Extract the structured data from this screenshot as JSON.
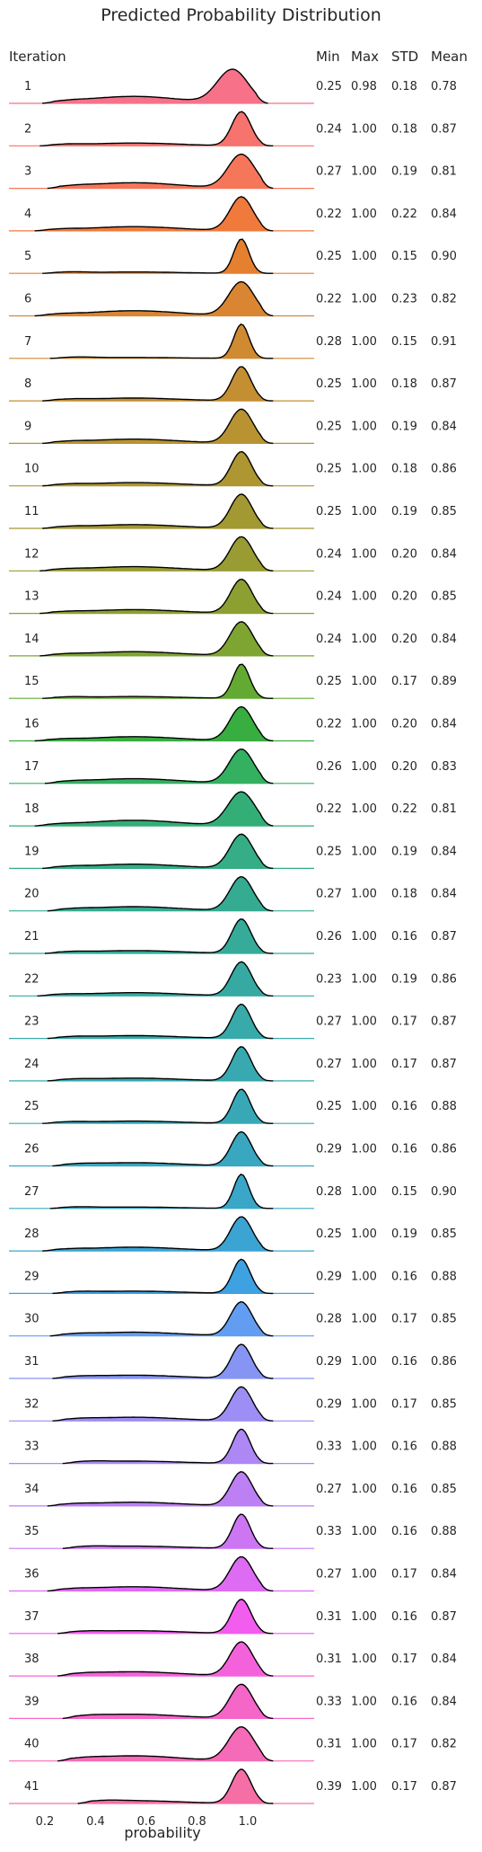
{
  "chart_data": {
    "type": "area",
    "title": "Predicted Probability Distribution",
    "xlabel": "probability",
    "xlim": [
      0.1,
      1.2
    ],
    "xticks": [
      "0.2",
      "0.4",
      "0.6",
      "0.8",
      "1.0"
    ],
    "row_header": "Iteration",
    "stat_headers": [
      "Min",
      "Max",
      "STD",
      "Mean"
    ],
    "rows": [
      {
        "iteration": "1",
        "min": "0.25",
        "max": "0.98",
        "std": "0.18",
        "mean": "0.78",
        "color": "#f77189"
      },
      {
        "iteration": "2",
        "min": "0.24",
        "max": "1.00",
        "std": "0.18",
        "mean": "0.87",
        "color": "#f7736e"
      },
      {
        "iteration": "3",
        "min": "0.27",
        "max": "1.00",
        "std": "0.19",
        "mean": "0.81",
        "color": "#f6765a"
      },
      {
        "iteration": "4",
        "min": "0.22",
        "max": "1.00",
        "std": "0.22",
        "mean": "0.84",
        "color": "#f07a3b"
      },
      {
        "iteration": "5",
        "min": "0.25",
        "max": "1.00",
        "std": "0.15",
        "mean": "0.90",
        "color": "#e5802f"
      },
      {
        "iteration": "6",
        "min": "0.22",
        "max": "1.00",
        "std": "0.23",
        "mean": "0.82",
        "color": "#da8531"
      },
      {
        "iteration": "7",
        "min": "0.28",
        "max": "1.00",
        "std": "0.15",
        "mean": "0.91",
        "color": "#cf8a32"
      },
      {
        "iteration": "8",
        "min": "0.25",
        "max": "1.00",
        "std": "0.18",
        "mean": "0.87",
        "color": "#c48e32"
      },
      {
        "iteration": "9",
        "min": "0.25",
        "max": "1.00",
        "std": "0.19",
        "mean": "0.84",
        "color": "#b99232"
      },
      {
        "iteration": "10",
        "min": "0.25",
        "max": "1.00",
        "std": "0.18",
        "mean": "0.86",
        "color": "#ae9632"
      },
      {
        "iteration": "11",
        "min": "0.25",
        "max": "1.00",
        "std": "0.19",
        "mean": "0.85",
        "color": "#a39932"
      },
      {
        "iteration": "12",
        "min": "0.24",
        "max": "1.00",
        "std": "0.20",
        "mean": "0.84",
        "color": "#989c32"
      },
      {
        "iteration": "13",
        "min": "0.24",
        "max": "1.00",
        "std": "0.20",
        "mean": "0.85",
        "color": "#8ca032"
      },
      {
        "iteration": "14",
        "min": "0.24",
        "max": "1.00",
        "std": "0.20",
        "mean": "0.84",
        "color": "#7ea432"
      },
      {
        "iteration": "15",
        "min": "0.25",
        "max": "1.00",
        "std": "0.17",
        "mean": "0.89",
        "color": "#63aa32"
      },
      {
        "iteration": "16",
        "min": "0.22",
        "max": "1.00",
        "std": "0.20",
        "mean": "0.84",
        "color": "#37ae3f"
      },
      {
        "iteration": "17",
        "min": "0.26",
        "max": "1.00",
        "std": "0.20",
        "mean": "0.83",
        "color": "#33b060"
      },
      {
        "iteration": "18",
        "min": "0.22",
        "max": "1.00",
        "std": "0.22",
        "mean": "0.81",
        "color": "#34ae77"
      },
      {
        "iteration": "19",
        "min": "0.25",
        "max": "1.00",
        "std": "0.19",
        "mean": "0.84",
        "color": "#35ad86"
      },
      {
        "iteration": "20",
        "min": "0.27",
        "max": "1.00",
        "std": "0.18",
        "mean": "0.84",
        "color": "#35ac91"
      },
      {
        "iteration": "21",
        "min": "0.26",
        "max": "1.00",
        "std": "0.16",
        "mean": "0.87",
        "color": "#36ab9a"
      },
      {
        "iteration": "22",
        "min": "0.23",
        "max": "1.00",
        "std": "0.19",
        "mean": "0.86",
        "color": "#36aaa2"
      },
      {
        "iteration": "23",
        "min": "0.27",
        "max": "1.00",
        "std": "0.17",
        "mean": "0.87",
        "color": "#37aaa9"
      },
      {
        "iteration": "24",
        "min": "0.27",
        "max": "1.00",
        "std": "0.17",
        "mean": "0.87",
        "color": "#38a9b0"
      },
      {
        "iteration": "25",
        "min": "0.25",
        "max": "1.00",
        "std": "0.16",
        "mean": "0.88",
        "color": "#38a8b7"
      },
      {
        "iteration": "26",
        "min": "0.29",
        "max": "1.00",
        "std": "0.16",
        "mean": "0.86",
        "color": "#39a7bf"
      },
      {
        "iteration": "27",
        "min": "0.28",
        "max": "1.00",
        "std": "0.15",
        "mean": "0.90",
        "color": "#3aa6c8"
      },
      {
        "iteration": "28",
        "min": "0.25",
        "max": "1.00",
        "std": "0.19",
        "mean": "0.85",
        "color": "#3ba4d3"
      },
      {
        "iteration": "29",
        "min": "0.29",
        "max": "1.00",
        "std": "0.16",
        "mean": "0.88",
        "color": "#3da1e2"
      },
      {
        "iteration": "30",
        "min": "0.28",
        "max": "1.00",
        "std": "0.17",
        "mean": "0.85",
        "color": "#639df2"
      },
      {
        "iteration": "31",
        "min": "0.29",
        "max": "1.00",
        "std": "0.16",
        "mean": "0.86",
        "color": "#8695f4"
      },
      {
        "iteration": "32",
        "min": "0.29",
        "max": "1.00",
        "std": "0.17",
        "mean": "0.85",
        "color": "#9c8ef4"
      },
      {
        "iteration": "33",
        "min": "0.33",
        "max": "1.00",
        "std": "0.16",
        "mean": "0.88",
        "color": "#ad87f4"
      },
      {
        "iteration": "34",
        "min": "0.27",
        "max": "1.00",
        "std": "0.16",
        "mean": "0.85",
        "color": "#bd7ff4"
      },
      {
        "iteration": "35",
        "min": "0.33",
        "max": "1.00",
        "std": "0.16",
        "mean": "0.88",
        "color": "#cc76f4"
      },
      {
        "iteration": "36",
        "min": "0.27",
        "max": "1.00",
        "std": "0.17",
        "mean": "0.84",
        "color": "#dd6bf4"
      },
      {
        "iteration": "37",
        "min": "0.31",
        "max": "1.00",
        "std": "0.16",
        "mean": "0.87",
        "color": "#f25df0"
      },
      {
        "iteration": "38",
        "min": "0.31",
        "max": "1.00",
        "std": "0.17",
        "mean": "0.84",
        "color": "#f462db"
      },
      {
        "iteration": "39",
        "min": "0.33",
        "max": "1.00",
        "std": "0.16",
        "mean": "0.84",
        "color": "#f566c9"
      },
      {
        "iteration": "40",
        "min": "0.31",
        "max": "1.00",
        "std": "0.17",
        "mean": "0.82",
        "color": "#f56bb8"
      },
      {
        "iteration": "41",
        "min": "0.39",
        "max": "1.00",
        "std": "0.17",
        "mean": "0.87",
        "color": "#f66ea6"
      }
    ]
  }
}
